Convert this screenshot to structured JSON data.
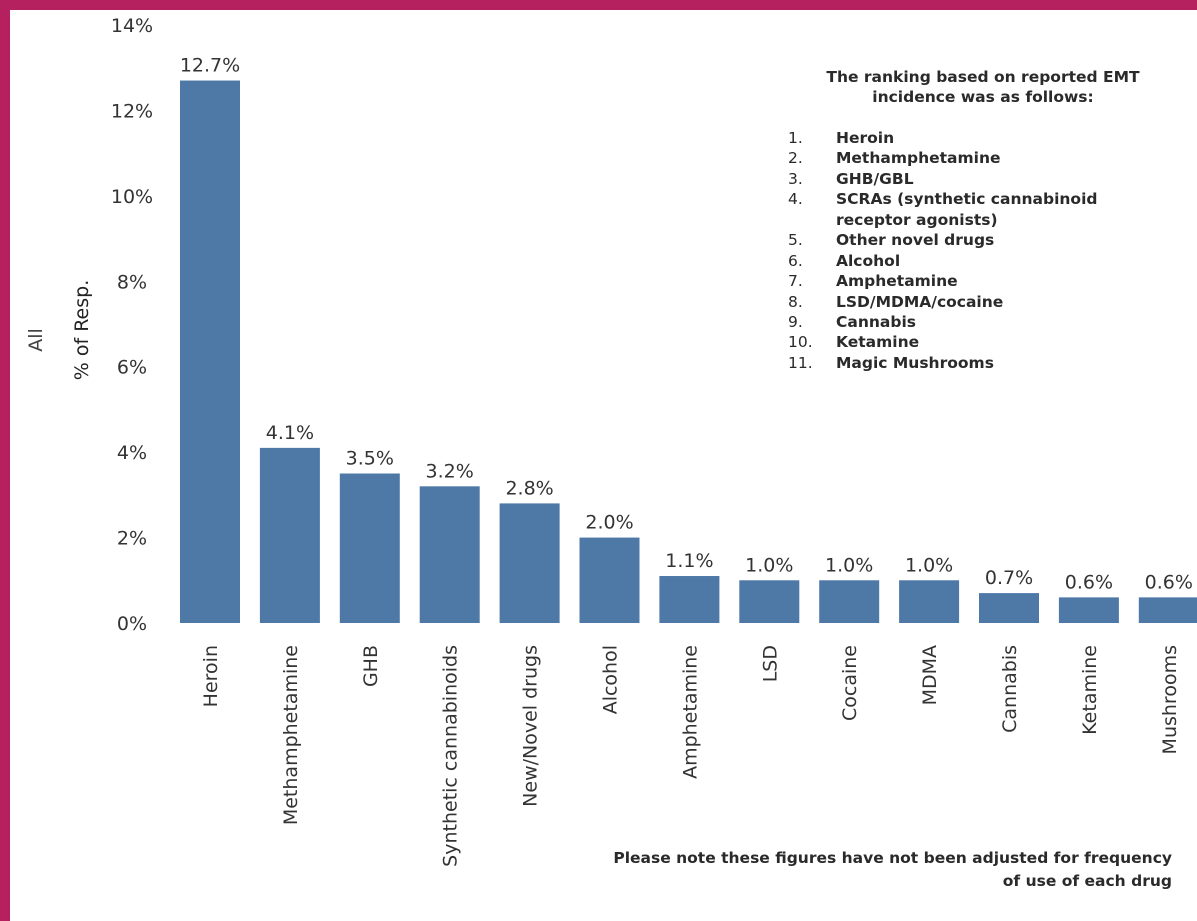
{
  "colors": {
    "frame": "#b5205f",
    "bar": "#4e79a7",
    "background": "#ffffff"
  },
  "row_header": "All",
  "chart_data": {
    "type": "bar",
    "ylabel": "% of Resp.",
    "ylim": [
      0,
      14
    ],
    "yticks": [
      "0%",
      "2%",
      "4%",
      "6%",
      "8%",
      "10%",
      "12%",
      "14%"
    ],
    "grid": false,
    "categories": [
      "Heroin",
      "Methamphetamine",
      "GHB",
      "Synthetic cannabinoids",
      "New/Novel drugs",
      "Alcohol",
      "Amphetamine",
      "LSD",
      "Cocaine",
      "MDMA",
      "Cannabis",
      "Ketamine",
      "Mushrooms"
    ],
    "values": [
      12.7,
      4.1,
      3.5,
      3.2,
      2.8,
      2.0,
      1.1,
      1.0,
      1.0,
      1.0,
      0.7,
      0.6,
      0.6
    ],
    "value_labels": [
      "12.7%",
      "4.1%",
      "3.5%",
      "3.2%",
      "2.8%",
      "2.0%",
      "1.1%",
      "1.0%",
      "1.0%",
      "1.0%",
      "0.7%",
      "0.6%",
      "0.6%"
    ]
  },
  "ranking": {
    "heading": "The ranking based on reported EMT incidence was as follows:",
    "items": [
      {
        "num": "1.",
        "text": "Heroin"
      },
      {
        "num": "2.",
        "text": "Methamphetamine"
      },
      {
        "num": "3.",
        "text": "GHB/GBL"
      },
      {
        "num": "4.",
        "text": "SCRAs (synthetic cannabinoid receptor agonists)"
      },
      {
        "num": "5.",
        "text": "Other novel drugs"
      },
      {
        "num": "6.",
        "text": "Alcohol"
      },
      {
        "num": "7.",
        "text": "Amphetamine"
      },
      {
        "num": "8.",
        "text": "LSD/MDMA/cocaine"
      },
      {
        "num": "9.",
        "text": "Cannabis"
      },
      {
        "num": "10.",
        "text": "Ketamine"
      },
      {
        "num": "11.",
        "text": "Magic Mushrooms"
      }
    ]
  },
  "note": "Please note these figures have not been adjusted for frequency of use of each drug"
}
